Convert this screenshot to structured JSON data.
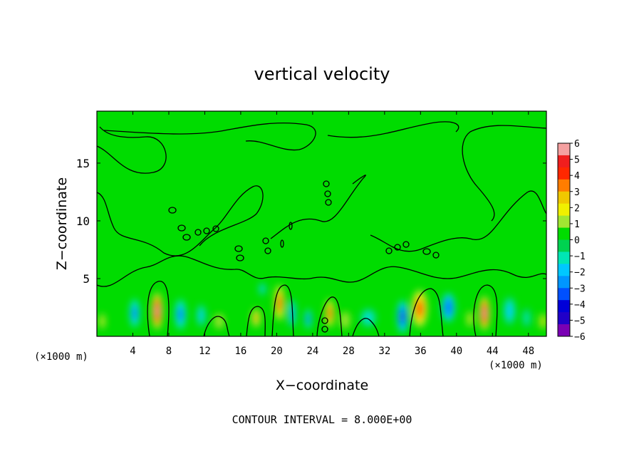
{
  "chart_data": {
    "type": "heatmap",
    "title": "vertical velocity",
    "xlabel": "X−coordinate",
    "ylabel": "Z−coordinate",
    "x_unit": "(×1000 m)",
    "x_unit_right": "(×1000 m)",
    "footer": "CONTOUR INTERVAL = 8.000E+00",
    "xlim": [
      0,
      50
    ],
    "ylim": [
      0,
      19.5
    ],
    "x_ticks": [
      4,
      8,
      12,
      16,
      20,
      24,
      28,
      32,
      36,
      40,
      44,
      48
    ],
    "x_tick_labels": [
      "4",
      "8",
      "12",
      "16",
      "20",
      "24",
      "28",
      "32",
      "36",
      "40",
      "44",
      "48"
    ],
    "y_ticks": [
      5,
      10,
      15
    ],
    "y_tick_labels": [
      "5",
      "10",
      "15"
    ],
    "colorbar": {
      "ticks": [
        6,
        5,
        4,
        3,
        2,
        1,
        0,
        -1,
        -2,
        -3,
        -4,
        -5,
        -6
      ],
      "tick_labels": [
        "6",
        "5",
        "4",
        "3",
        "2",
        "1",
        "0",
        "−1",
        "−2",
        "−3",
        "−4",
        "−5",
        "−6"
      ],
      "colors": [
        "#f4a0a0",
        "#f01e1e",
        "#ff2800",
        "#ff7d00",
        "#f0c800",
        "#f0f000",
        "#a0e632",
        "#00dc00",
        "#00d250",
        "#00e6b4",
        "#00c8ff",
        "#0096ff",
        "#0050ff",
        "#0000d8",
        "#2000c8",
        "#7a00b4"
      ]
    },
    "background_value": 0,
    "features": [
      {
        "x": 6.7,
        "z": 2.2,
        "w": 1.0,
        "h": 2.6,
        "value": 5.9
      },
      {
        "x": 43.1,
        "z": 2.0,
        "w": 1.0,
        "h": 2.4,
        "value": 5.8
      },
      {
        "x": 35.9,
        "z": 2.4,
        "w": 1.4,
        "h": 2.6,
        "value": 4.2
      },
      {
        "x": 20.3,
        "z": 2.9,
        "w": 0.9,
        "h": 2.5,
        "value": 4.0
      },
      {
        "x": 25.9,
        "z": 2.0,
        "w": 0.8,
        "h": 2.0,
        "value": 4.1
      },
      {
        "x": 17.7,
        "z": 1.6,
        "w": 0.8,
        "h": 1.3,
        "value": 3.4
      },
      {
        "x": 49.6,
        "z": 1.3,
        "w": 0.6,
        "h": 1.2,
        "value": 2.5
      },
      {
        "x": 0.6,
        "z": 1.3,
        "w": 0.6,
        "h": 1.2,
        "value": 1.8
      },
      {
        "x": 4.2,
        "z": 2.0,
        "w": 0.9,
        "h": 2.0,
        "value": -3.4
      },
      {
        "x": 9.3,
        "z": 1.9,
        "w": 1.0,
        "h": 2.1,
        "value": -3.2
      },
      {
        "x": 11.6,
        "z": 1.8,
        "w": 0.8,
        "h": 1.6,
        "value": -2.1
      },
      {
        "x": 21.7,
        "z": 2.0,
        "w": 0.7,
        "h": 2.1,
        "value": -2.6
      },
      {
        "x": 23.5,
        "z": 1.5,
        "w": 0.6,
        "h": 1.4,
        "value": -3.0
      },
      {
        "x": 34.0,
        "z": 1.7,
        "w": 1.0,
        "h": 2.3,
        "value": -4.5
      },
      {
        "x": 39.1,
        "z": 2.5,
        "w": 1.2,
        "h": 2.0,
        "value": -3.6
      },
      {
        "x": 45.9,
        "z": 2.2,
        "w": 1.1,
        "h": 2.0,
        "value": -2.1
      },
      {
        "x": 30.2,
        "z": 1.6,
        "w": 1.4,
        "h": 1.3,
        "value": -1.8
      },
      {
        "x": 18.4,
        "z": 4.1,
        "w": 0.6,
        "h": 0.9,
        "value": -1.9
      },
      {
        "x": 13.6,
        "z": 1.3,
        "w": 1.1,
        "h": 1.3,
        "value": 1.5
      },
      {
        "x": 27.6,
        "z": 1.4,
        "w": 1.1,
        "h": 1.5,
        "value": 1.3
      },
      {
        "x": 41.5,
        "z": 1.5,
        "w": 0.7,
        "h": 1.4,
        "value": 1.6
      },
      {
        "x": 47.8,
        "z": 1.6,
        "w": 0.8,
        "h": 1.4,
        "value": -1.4
      }
    ],
    "grid": false,
    "colorbar_location": "right"
  }
}
